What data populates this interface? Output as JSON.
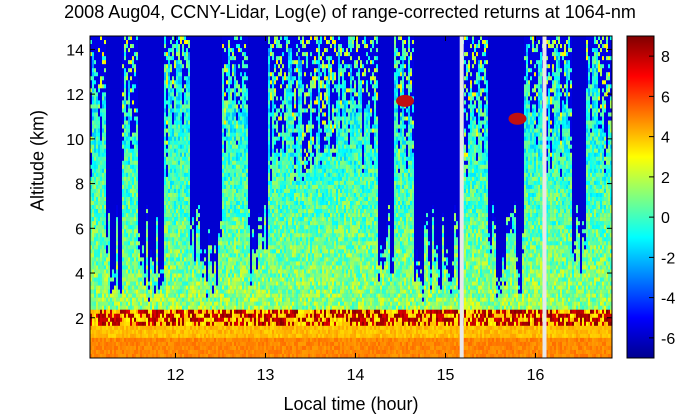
{
  "chart_data": {
    "type": "heatmap",
    "title": "2008 Aug04, CCNY-Lidar, Log(e) of range-corrected returns at 1064-nm",
    "xlabel": "Local time (hour)",
    "ylabel": "Altitude (km)",
    "xlim": [
      11.05,
      16.85
    ],
    "ylim": [
      0.2,
      14.6
    ],
    "x_ticks": [
      "12",
      "13",
      "14",
      "15",
      "16"
    ],
    "x_tick_values": [
      12,
      13,
      14,
      15,
      16
    ],
    "y_ticks": [
      "2",
      "4",
      "6",
      "8",
      "10",
      "12",
      "14"
    ],
    "y_tick_values": [
      2,
      4,
      6,
      8,
      10,
      12,
      14
    ],
    "colorbar": {
      "colormap": "jet",
      "range": [
        -7,
        9
      ],
      "ticks": [
        "8",
        "6",
        "4",
        "2",
        "0",
        "-2",
        "-4",
        "-6"
      ],
      "tick_values": [
        8,
        6,
        4,
        2,
        0,
        -2,
        -4,
        -6
      ]
    },
    "data_gaps_hours": [
      15.18,
      16.1
    ],
    "features": {
      "boundary_layer_top_km": 2.4,
      "aerosol_layer_km": [
        0.3,
        2.6
      ],
      "cloud_layers": [
        {
          "time_hour": 14.55,
          "altitude_km": 11.7
        },
        {
          "time_hour": 15.8,
          "altitude_km": 10.9
        }
      ]
    }
  }
}
